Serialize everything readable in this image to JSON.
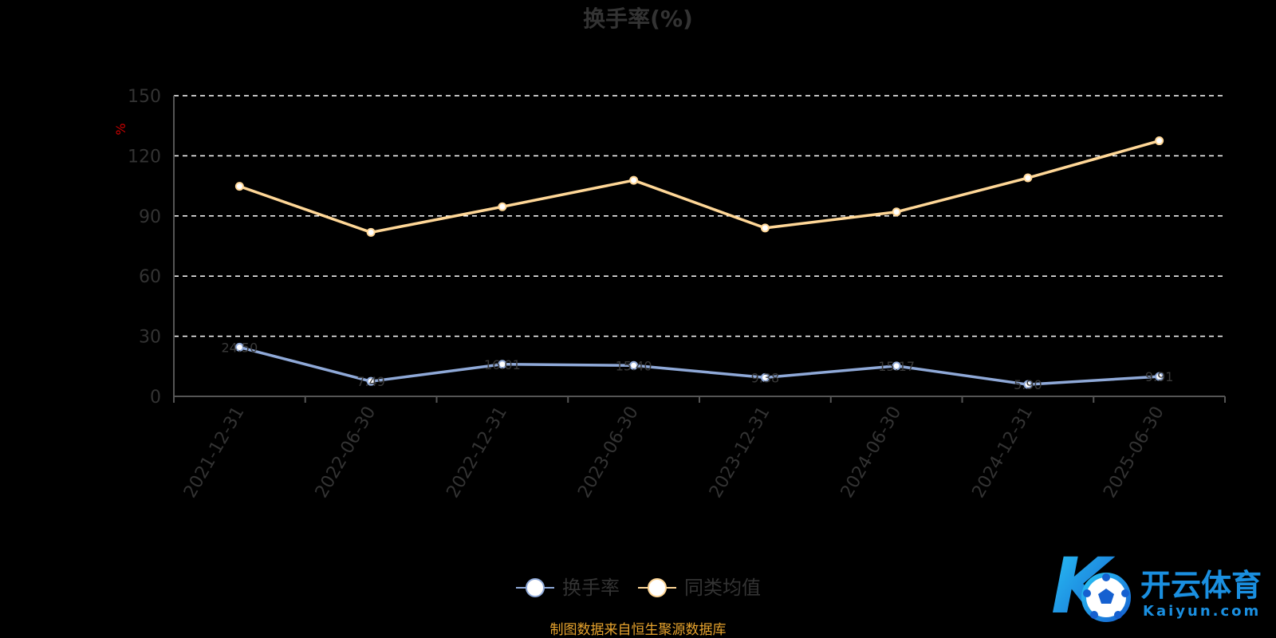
{
  "chart_data": {
    "type": "line",
    "title": "换手率(%)",
    "ylabel": "%",
    "xlabel": "",
    "ylim": [
      0,
      150
    ],
    "yticks": [
      0,
      30,
      60,
      90,
      120,
      150
    ],
    "grid": true,
    "legend_position": "bottom",
    "categories": [
      "2021-12-31",
      "2022-06-30",
      "2022-12-31",
      "2023-06-30",
      "2023-12-31",
      "2024-06-30",
      "2024-12-31",
      "2025-06-30"
    ],
    "series": [
      {
        "name": "换手率",
        "color": "#8fa9d8",
        "values": [
          24.5,
          7.49,
          16.01,
          15.4,
          9.38,
          15.17,
          5.9,
          9.91
        ],
        "labels": [
          "24.50",
          "7.49",
          "16.01",
          "15.40",
          "9.38",
          "15.17",
          "5.90",
          "9.91"
        ]
      },
      {
        "name": "同类均值",
        "color": "#ffd797",
        "values": [
          104.8,
          81.8,
          94.6,
          107.8,
          84.0,
          92.0,
          109.0,
          127.5
        ]
      }
    ],
    "source_note": "制图数据来自恒生聚源数据库"
  },
  "watermark": {
    "text_cn": "开云体育",
    "text_en": "Kaiyun.com",
    "logo_letter": "K"
  }
}
